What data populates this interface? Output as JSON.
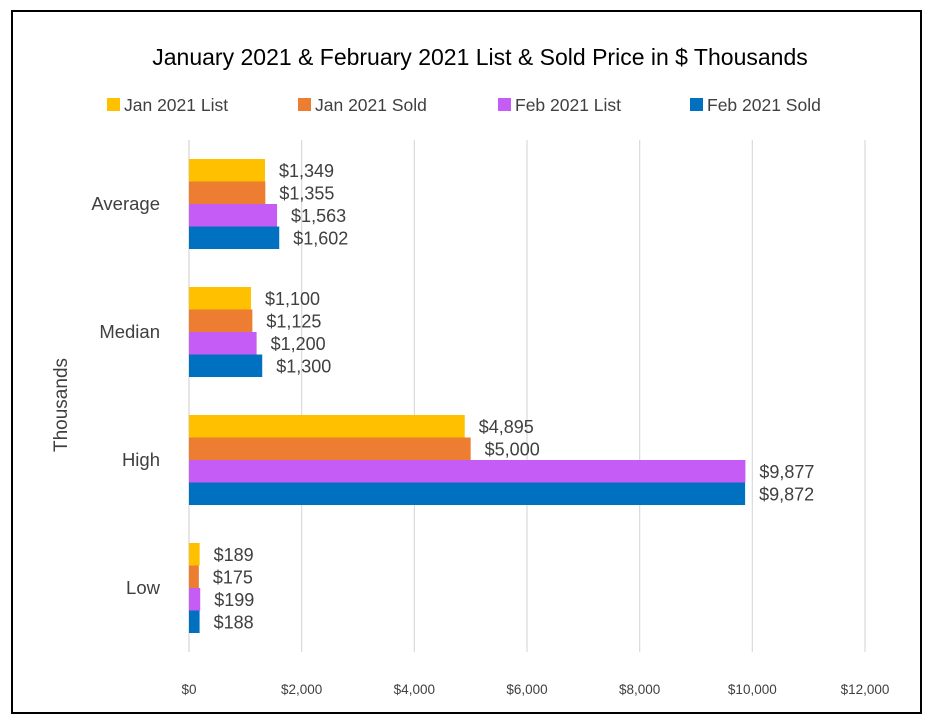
{
  "chart_data": {
    "type": "bar",
    "orientation": "horizontal",
    "title": "January 2021 & February 2021 List & Sold Price in $ Thousands",
    "ylabel": "Thousands",
    "xlabel": "",
    "categories": [
      "Average",
      "Median",
      "High",
      "Low"
    ],
    "series": [
      {
        "name": "Jan 2021 List",
        "color": "#FFC000",
        "values": [
          1349,
          1100,
          4895,
          189
        ],
        "labels": [
          "$1,349",
          "$1,100",
          "$4,895",
          "$189"
        ]
      },
      {
        "name": "Jan 2021 Sold",
        "color": "#ED7D31",
        "values": [
          1355,
          1125,
          5000,
          175
        ],
        "labels": [
          "$1,355",
          "$1,125",
          "$5,000",
          "$175"
        ]
      },
      {
        "name": "Feb 2021 List",
        "color": "#C55CF5",
        "values": [
          1563,
          1200,
          9877,
          199
        ],
        "labels": [
          "$1,563",
          "$1,200",
          "$9,877",
          "$199"
        ]
      },
      {
        "name": "Feb 2021 Sold",
        "color": "#0070C0",
        "values": [
          1602,
          1300,
          9872,
          188
        ],
        "labels": [
          "$1,602",
          "$1,300",
          "$9,872",
          "$188"
        ]
      }
    ],
    "xlim": [
      0,
      12000
    ],
    "ticks": [
      0,
      2000,
      4000,
      6000,
      8000,
      10000,
      12000
    ],
    "tick_labels": [
      "$0",
      "$2,000",
      "$4,000",
      "$6,000",
      "$8,000",
      "$10,000",
      "$12,000"
    ],
    "grid": true,
    "legend_position": "top"
  }
}
